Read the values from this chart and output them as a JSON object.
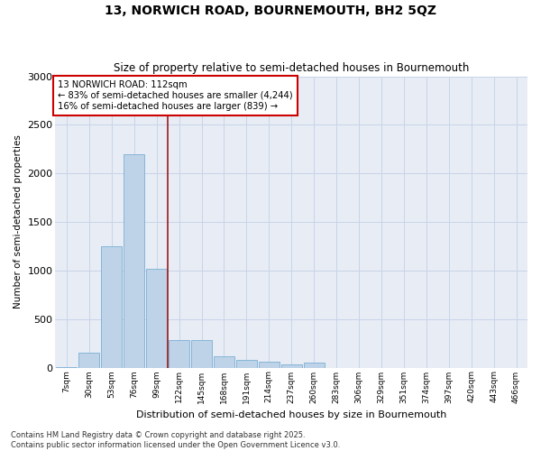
{
  "title_line1": "13, NORWICH ROAD, BOURNEMOUTH, BH2 5QZ",
  "title_line2": "Size of property relative to semi-detached houses in Bournemouth",
  "xlabel": "Distribution of semi-detached houses by size in Bournemouth",
  "ylabel": "Number of semi-detached properties",
  "bar_color": "#bed3e8",
  "bar_edge_color": "#7aafd4",
  "vline_color": "#9b1a1a",
  "vline_x_index": 4.5,
  "annotation_box_text": "13 NORWICH ROAD: 112sqm\n← 83% of semi-detached houses are smaller (4,244)\n16% of semi-detached houses are larger (839) →",
  "annotation_box_color": "#ffffff",
  "annotation_box_edgecolor": "#cc0000",
  "categories": [
    "7sqm",
    "30sqm",
    "53sqm",
    "76sqm",
    "99sqm",
    "122sqm",
    "145sqm",
    "168sqm",
    "191sqm",
    "214sqm",
    "237sqm",
    "260sqm",
    "283sqm",
    "306sqm",
    "329sqm",
    "351sqm",
    "374sqm",
    "397sqm",
    "420sqm",
    "443sqm",
    "466sqm"
  ],
  "values": [
    5,
    150,
    1250,
    2200,
    1020,
    280,
    280,
    120,
    80,
    60,
    30,
    50,
    0,
    0,
    0,
    0,
    0,
    0,
    0,
    0,
    0
  ],
  "ylim": [
    0,
    3000
  ],
  "yticks": [
    0,
    500,
    1000,
    1500,
    2000,
    2500,
    3000
  ],
  "grid_color": "#c8d4e8",
  "background_color": "#e8edf5",
  "footer_text": "Contains HM Land Registry data © Crown copyright and database right 2025.\nContains public sector information licensed under the Open Government Licence v3.0.",
  "figsize": [
    6.0,
    5.0
  ],
  "dpi": 100
}
